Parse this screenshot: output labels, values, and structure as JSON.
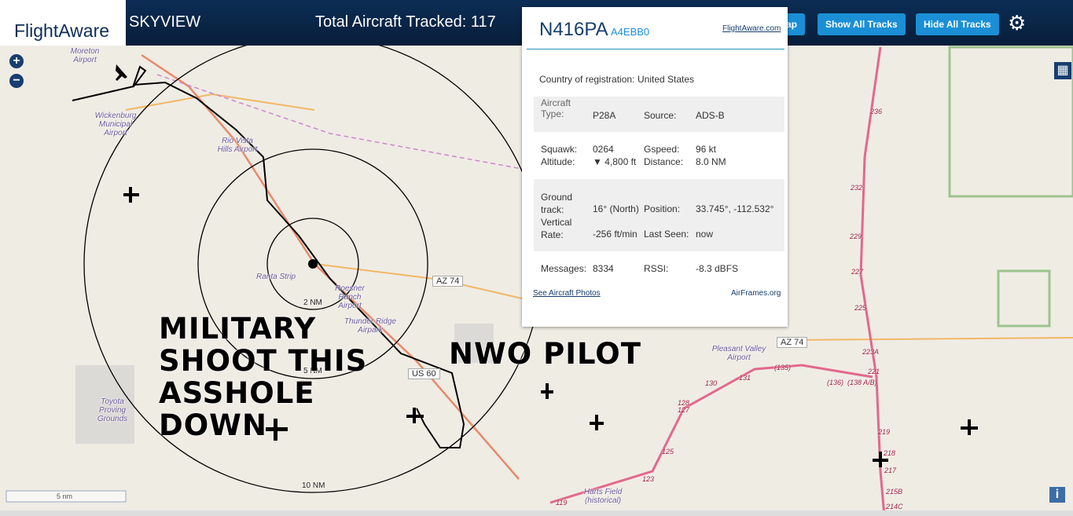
{
  "header": {
    "logo": "FlightAware",
    "app_name": "SKYVIEW",
    "total": "Total Aircraft Tracked: 117",
    "buttons": [
      "ap",
      "Show All Tracks",
      "Hide All Tracks"
    ]
  },
  "popup": {
    "registration": "N416PA",
    "hex": "A4EBB0",
    "link": "FlightAware.com",
    "country_label": "Country of registration:",
    "country": "United States",
    "rows": [
      [
        "Aircraft Type:",
        "P28A",
        "Source:",
        "ADS-B"
      ],
      [
        "Squawk:",
        "0264",
        "Gspeed:",
        "96 kt"
      ],
      [
        "Altitude:",
        "▼ 4,800 ft",
        "Distance:",
        "8.0 NM"
      ],
      [
        "Ground track:",
        "16° (North)",
        "Position:",
        "33.745°, -112.532°"
      ],
      [
        "Vertical Rate:",
        "-256 ft/min",
        "Last Seen:",
        "now"
      ],
      [
        "Messages:",
        "8334",
        "RSSI:",
        "-8.3 dBFS"
      ]
    ],
    "photos_link": "See Aircraft Photos",
    "airframes_link": "AirFrames.org"
  },
  "map": {
    "places": [
      "Moreton Airport",
      "Wickenburg Municipal Airport",
      "Rio Vista Hills Airport",
      "Ranta Strip",
      "Roesner Ranch Airport",
      "Thunder Ridge Airpark",
      "Toyota Proving Grounds",
      "Pleasant Valley Airport",
      "Harts Field (historical)"
    ],
    "highways": [
      "AZ 74",
      "US 60",
      "AZ 74"
    ],
    "rings": [
      "2 NM",
      "5 NM",
      "10 NM"
    ],
    "roads": [
      "236",
      "232",
      "229",
      "227",
      "225",
      "223A",
      "221",
      "219",
      "218",
      "217",
      "215B",
      "214C",
      "131",
      "130",
      "128",
      "127",
      "125",
      "123",
      "119",
      "(135)",
      "(136)",
      "(138 A/B)"
    ],
    "scale": "5 nm"
  },
  "overlay": {
    "caption_1": "MILITARY SHOOT THIS ASSHOLE DOWN",
    "caption_2": "NWO PILOT"
  }
}
